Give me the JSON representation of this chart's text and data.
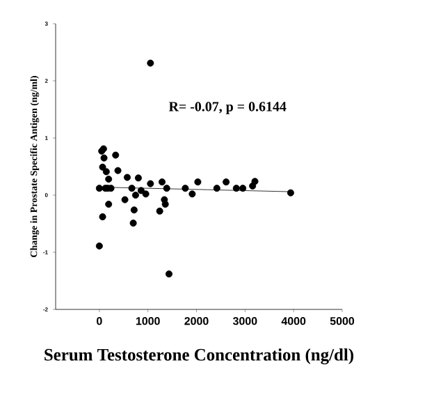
{
  "chart_data": {
    "type": "scatter",
    "xlabel": "Serum Testosterone Concentration (ng/dl)",
    "ylabel": "Change in Prostate Specific Antigen (ng/ml)",
    "annotations": [
      "R= -0.07, p = 0.6144"
    ],
    "xlim": [
      -900,
      5000
    ],
    "ylim": [
      -2,
      3
    ],
    "xticks": [
      0,
      1000,
      2000,
      3000,
      4000,
      5000
    ],
    "yticks": [
      -2,
      -1,
      0,
      1,
      2,
      3
    ],
    "grid": false,
    "series": [
      {
        "marker": "circle",
        "color": "#000000",
        "x": [
          1052,
          0,
          67,
          48,
          86,
          96,
          67,
          143,
          335,
          382,
          191,
          191,
          0,
          124,
          172,
          239,
          574,
          526,
          669,
          803,
          746,
          716,
          698,
          860,
          956,
          1052,
          1291,
          1339,
          1358,
          1243,
          1387,
          1434,
          1769,
          1912,
          2027,
          2419,
          2610,
          2820,
          2954,
          3155,
          3203,
          3939
        ],
        "values": [
          2.31,
          -0.89,
          -0.38,
          0.77,
          0.81,
          0.65,
          0.49,
          0.41,
          0.7,
          0.43,
          0.28,
          -0.16,
          0.12,
          0.12,
          0.12,
          0.12,
          0.31,
          -0.08,
          0.12,
          0.3,
          0.0,
          -0.26,
          -0.49,
          0.08,
          0.02,
          0.2,
          0.23,
          -0.08,
          -0.16,
          -0.28,
          0.12,
          -1.38,
          0.12,
          0.02,
          0.23,
          0.12,
          0.23,
          0.12,
          0.12,
          0.16,
          0.24,
          0.04
        ]
      },
      {
        "type": "line",
        "marker": "none",
        "color": "#000000",
        "x": [
          0,
          3939
        ],
        "values": [
          0.14,
          0.06
        ]
      }
    ]
  }
}
